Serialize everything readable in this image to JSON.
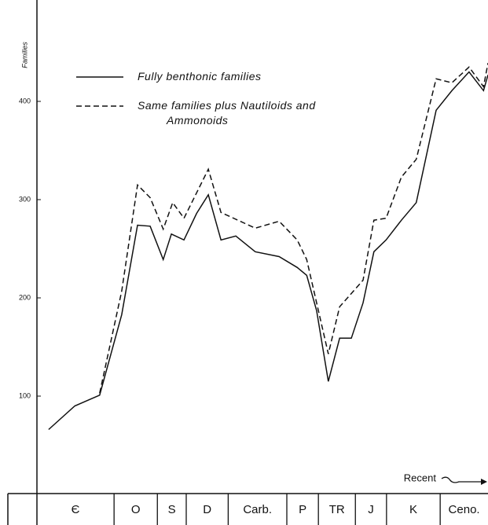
{
  "chart_data": {
    "type": "line",
    "y_label": "Families",
    "annotation": "Recent",
    "xlim": [
      0,
      100
    ],
    "ylim": [
      0,
      500
    ],
    "yticks": [
      100,
      200,
      300,
      400
    ],
    "periods": [
      {
        "label": "Є",
        "start": 0,
        "end": 17.1
      },
      {
        "label": "O",
        "start": 17.1,
        "end": 26.7
      },
      {
        "label": "S",
        "start": 26.7,
        "end": 33.1
      },
      {
        "label": "D",
        "start": 33.1,
        "end": 42.4
      },
      {
        "label": "Carb.",
        "start": 42.4,
        "end": 55.4
      },
      {
        "label": "P",
        "start": 55.4,
        "end": 62.4
      },
      {
        "label": "TR",
        "start": 62.4,
        "end": 70.6
      },
      {
        "label": "J",
        "start": 70.6,
        "end": 77.5
      },
      {
        "label": "K",
        "start": 77.5,
        "end": 89.4
      },
      {
        "label": "Ceno.",
        "start": 89.4,
        "end": 100
      }
    ],
    "series": [
      {
        "name": "Fully benthonic families",
        "color": "#111111",
        "linestyle": "solid",
        "x": [
          2.6,
          8.4,
          13.9,
          18.8,
          22.3,
          25.1,
          28.0,
          29.8,
          32.6,
          35.4,
          38.0,
          40.8,
          44.1,
          48.4,
          53.7,
          57.7,
          59.8,
          62.0,
          64.6,
          67.1,
          69.7,
          72.3,
          74.7,
          77.4,
          80.8,
          84.1,
          88.5,
          92.0,
          95.8,
          99.0,
          100
        ],
        "values": [
          66,
          90,
          101,
          183,
          274,
          273,
          239,
          265,
          259,
          286,
          305,
          259,
          263,
          247,
          242,
          231,
          223,
          187,
          115,
          159,
          159,
          195,
          247,
          259,
          279,
          297,
          391,
          411,
          430,
          411,
          427
        ]
      },
      {
        "name": "Same families plus Nautiloids and Ammonoids",
        "color": "#111111",
        "linestyle": "dashed",
        "x": [
          13.9,
          18.8,
          22.3,
          25.1,
          28.0,
          30.1,
          32.6,
          35.4,
          38.0,
          40.8,
          48.4,
          53.7,
          57.7,
          59.8,
          62.0,
          64.6,
          67.1,
          72.3,
          74.7,
          77.4,
          80.8,
          84.1,
          88.5,
          92.0,
          95.8,
          99.0,
          100
        ],
        "values": [
          103,
          207,
          315,
          302,
          270,
          297,
          281,
          307,
          331,
          287,
          271,
          278,
          259,
          239,
          195,
          143,
          191,
          218,
          279,
          281,
          323,
          341,
          423,
          419,
          435,
          415,
          439
        ]
      }
    ]
  }
}
